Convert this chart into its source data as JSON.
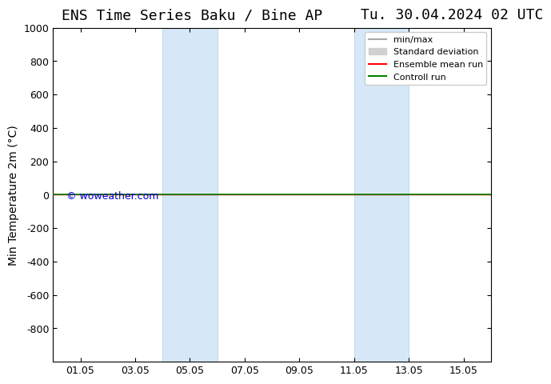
{
  "title_left": "ENS Time Series Baku / Bine AP",
  "title_right": "Tu. 30.04.2024 02 UTC",
  "ylabel": "Min Temperature 2m (°C)",
  "xtick_labels": [
    "01.05",
    "03.05",
    "05.05",
    "07.05",
    "09.05",
    "11.05",
    "13.05",
    "15.05"
  ],
  "xtick_positions": [
    1,
    3,
    5,
    7,
    9,
    11,
    13,
    15
  ],
  "ylim": [
    -1000,
    1000
  ],
  "ytick_positions": [
    -800,
    -600,
    -400,
    -200,
    0,
    200,
    400,
    600,
    800,
    1000
  ],
  "ytick_labels": [
    "-800",
    "-600",
    "-400",
    "-200",
    "0",
    "200",
    "400",
    "600",
    "800",
    "1000"
  ],
  "shaded_regions": [
    {
      "x_start": 4.0,
      "x_end": 6.0
    },
    {
      "x_start": 11.0,
      "x_end": 13.0
    }
  ],
  "shaded_color": "#d6e8f7",
  "shaded_edge_color": "#b0cfe8",
  "control_run_y": 0,
  "ensemble_mean_y": 0,
  "control_run_color": "#008000",
  "ensemble_mean_color": "#ff0000",
  "minmax_color": "#aaaaaa",
  "std_dev_color": "#d0d0d0",
  "watermark_text": "© woweather.com",
  "watermark_color": "#0000cc",
  "background_color": "#ffffff",
  "legend_labels": [
    "min/max",
    "Standard deviation",
    "Ensemble mean run",
    "Controll run"
  ],
  "legend_colors": [
    "#aaaaaa",
    "#d0d0d0",
    "#ff0000",
    "#008000"
  ],
  "title_fontsize": 13,
  "axis_fontsize": 10,
  "tick_fontsize": 9
}
